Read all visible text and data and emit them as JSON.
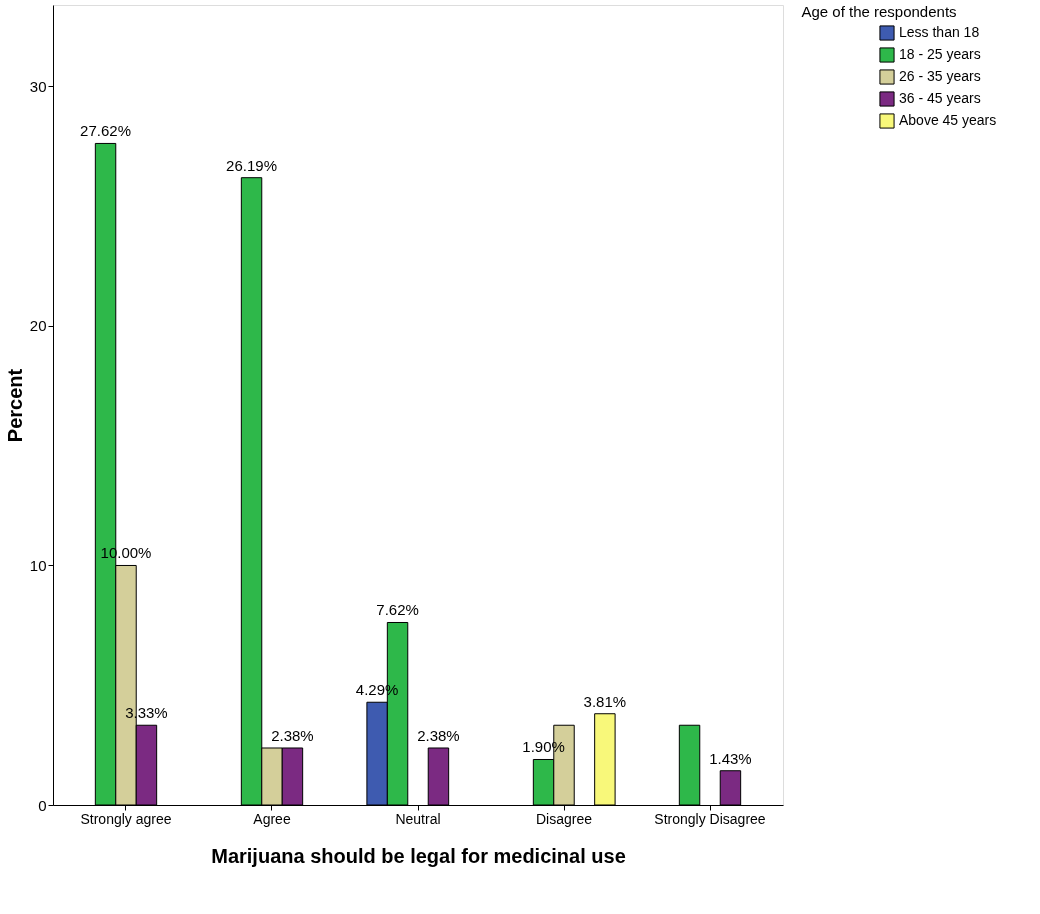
{
  "chart_data": {
    "type": "bar",
    "xlabel": "Marijuana should be legal for medicinal use",
    "ylabel": "Percent",
    "legend_title": "Age of the respondents",
    "legend": "top right",
    "categories": [
      "Strongly agree",
      "Agree",
      "Neutral",
      "Disagree",
      "Strongly Disagree"
    ],
    "ylim": [
      0,
      33.4
    ],
    "yticks": [
      0,
      10,
      20,
      30
    ],
    "grid": false,
    "series": [
      {
        "name": "Less than 18",
        "color": "#3e5bb0",
        "values": [
          null,
          null,
          4.29,
          null,
          null
        ],
        "value_labels": [
          null,
          null,
          "4.29%",
          null,
          null
        ]
      },
      {
        "name": "18 - 25 years",
        "color": "#2eb84a",
        "values": [
          27.62,
          26.19,
          7.62,
          1.9,
          3.33
        ],
        "value_labels": [
          "27.62%",
          "26.19%",
          "7.62%",
          "1.90%",
          null
        ]
      },
      {
        "name": "26 - 35 years",
        "color": "#d4cf9a",
        "values": [
          10.0,
          2.38,
          null,
          3.33,
          null
        ],
        "value_labels": [
          "10.00%",
          null,
          null,
          null,
          null
        ]
      },
      {
        "name": "36 - 45 years",
        "color": "#7b2a82",
        "values": [
          3.33,
          2.38,
          2.38,
          null,
          1.43
        ],
        "value_labels": [
          "3.33%",
          "2.38%",
          "2.38%",
          null,
          "1.43%"
        ]
      },
      {
        "name": "Above 45 years",
        "color": "#f8f87a",
        "values": [
          null,
          null,
          null,
          3.81,
          null
        ],
        "value_labels": [
          null,
          null,
          null,
          "3.81%",
          null
        ]
      }
    ]
  }
}
